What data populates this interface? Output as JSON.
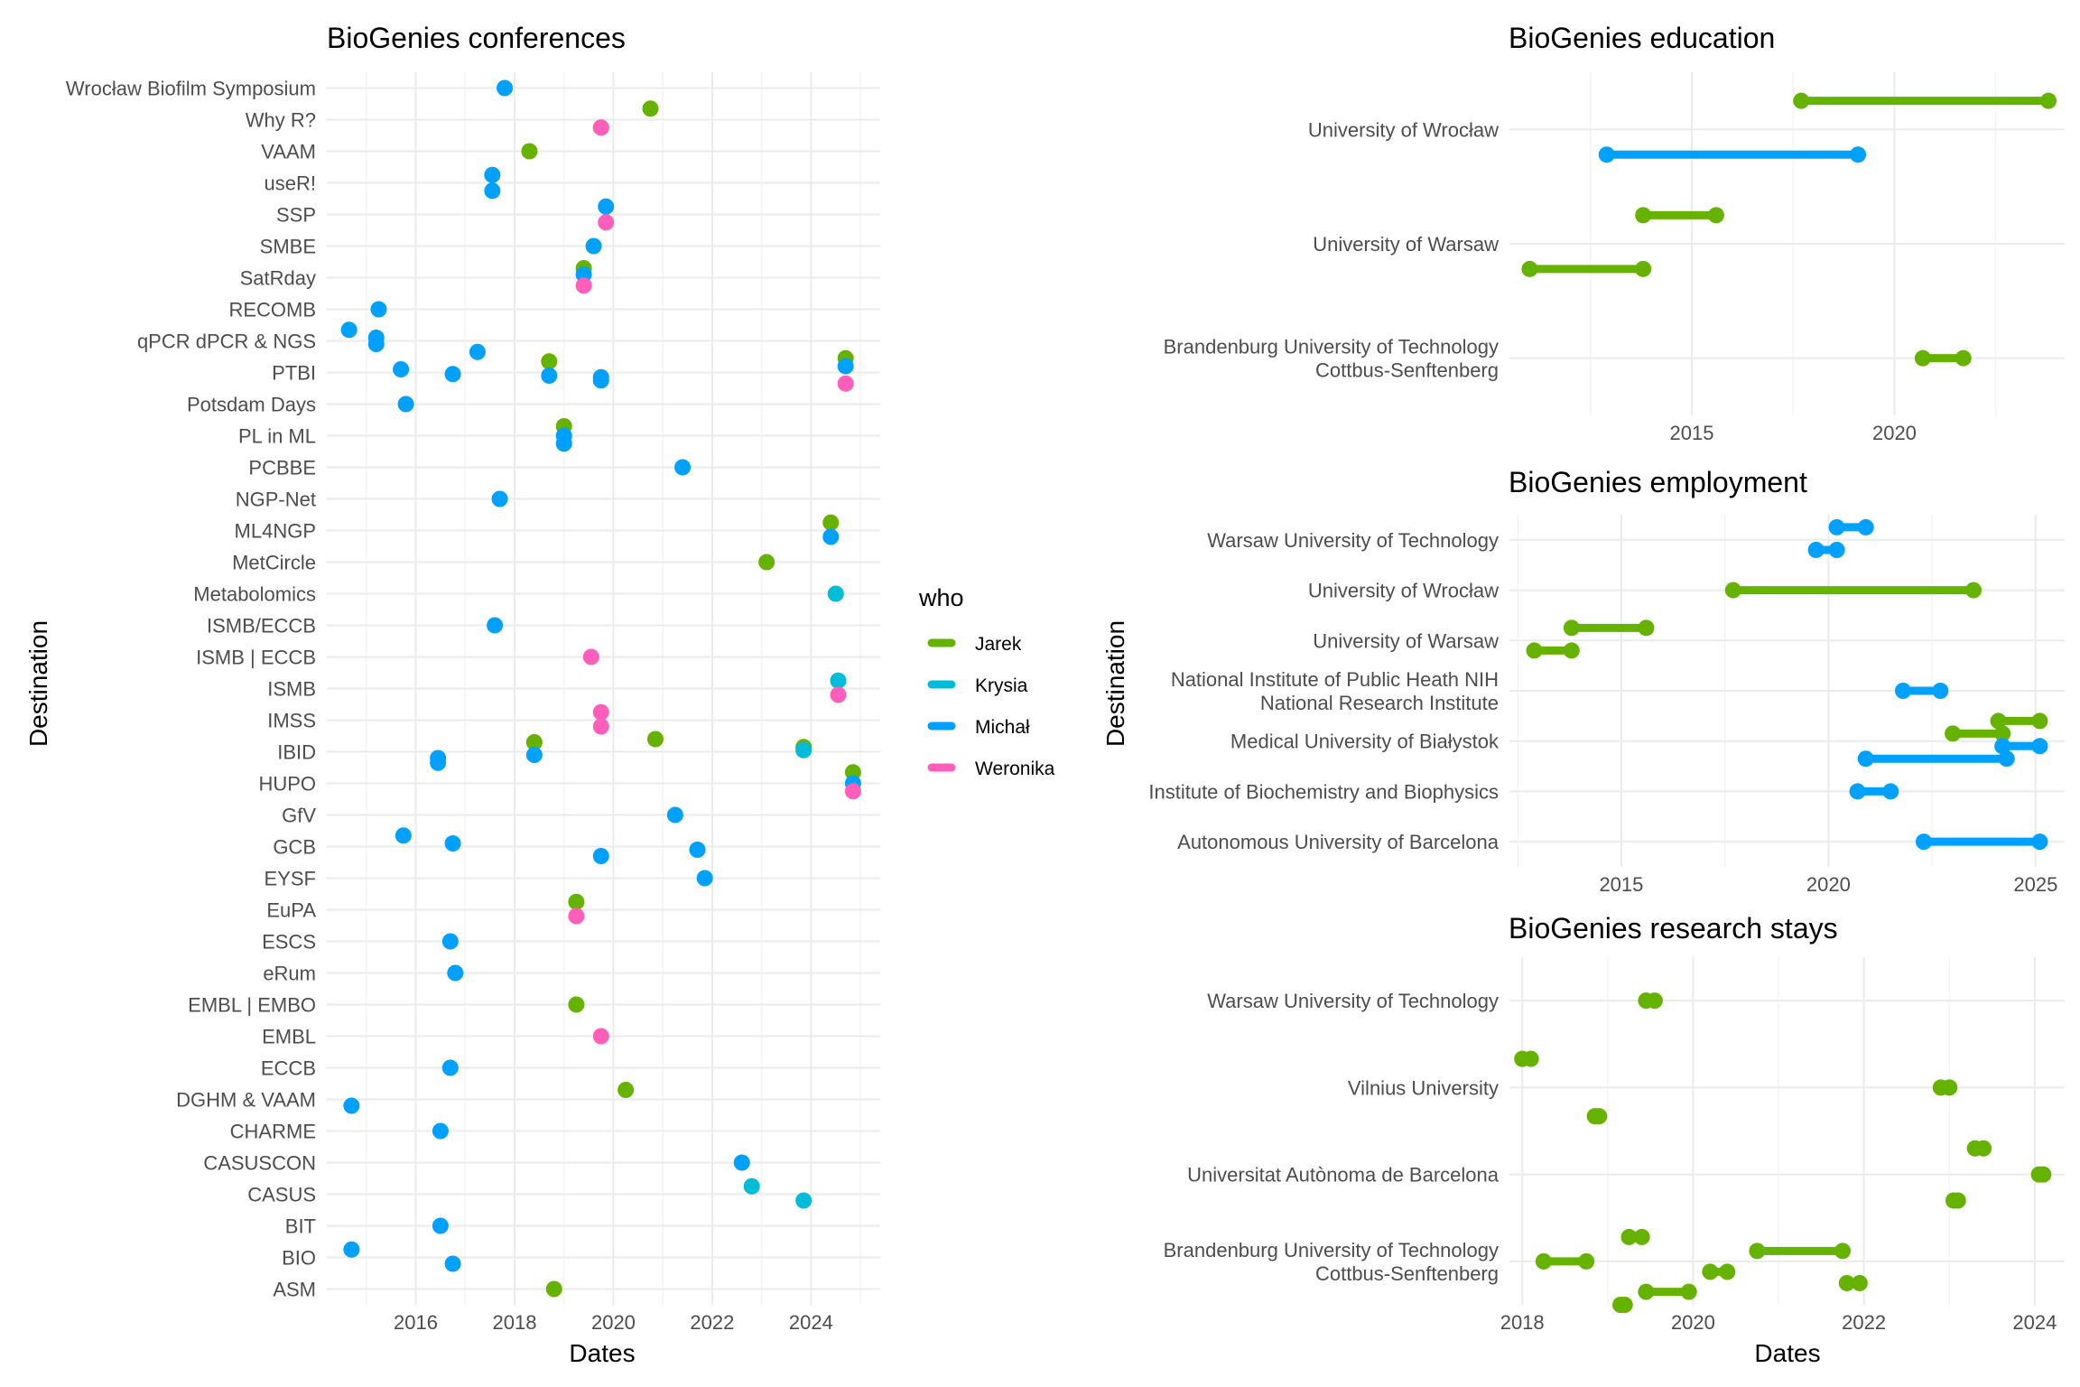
{
  "colors": {
    "Jarek": "#66b200",
    "Krysia": "#00bcd8",
    "Michał": "#00a0ff",
    "Weronika": "#ff5fbb"
  },
  "legend": {
    "title": "who",
    "items": [
      "Jarek",
      "Krysia",
      "Michał",
      "Weronika"
    ]
  },
  "chart_data": [
    {
      "type": "scatter",
      "title": "BioGenies conferences",
      "xlabel": "Dates",
      "ylabel": "Destination",
      "xlim": [
        2014.2,
        2025.4
      ],
      "xticks": [
        "2016",
        "2018",
        "2020",
        "2022",
        "2024"
      ],
      "categories": [
        "ASM",
        "BIO",
        "BIT",
        "CASUS",
        "CASUSCON",
        "CHARME",
        "DGHM & VAAM",
        "ECCB",
        "EMBL",
        "EMBL | EMBO",
        "eRum",
        "ESCS",
        "EuPA",
        "EYSF",
        "GCB",
        "GfV",
        "HUPO",
        "IBID",
        "IMSS",
        "ISMB",
        "ISMB | ECCB",
        "ISMB/ECCB",
        "Metabolomics",
        "MetCircle",
        "ML4NGP",
        "NGP-Net",
        "PCBBE",
        "PL in ML",
        "Potsdam Days",
        "PTBI",
        "qPCR dPCR & NGS",
        "RECOMB",
        "SatRday",
        "SMBE",
        "SSP",
        "useR!",
        "VAAM",
        "Why R?",
        "Wrocław Biofilm Symposium"
      ],
      "points": [
        {
          "y": "Wrocław Biofilm Symposium",
          "x": 2017.8,
          "who": "Michał",
          "offset": 0
        },
        {
          "y": "Why R?",
          "x": 2019.75,
          "who": "Jarek",
          "offset": -0.25
        },
        {
          "y": "Why R?",
          "x": 2020.75,
          "who": "Jarek",
          "offset": 0.35
        },
        {
          "y": "Why R?",
          "x": 2019.75,
          "who": "Weronika",
          "offset": -0.25
        },
        {
          "y": "VAAM",
          "x": 2018.3,
          "who": "Jarek",
          "offset": 0
        },
        {
          "y": "useR!",
          "x": 2017.55,
          "who": "Michał",
          "offset": 0.25
        },
        {
          "y": "useR!",
          "x": 2017.55,
          "who": "Michał",
          "offset": -0.25
        },
        {
          "y": "SSP",
          "x": 2019.85,
          "who": "Michał",
          "offset": 0.25
        },
        {
          "y": "SSP",
          "x": 2019.85,
          "who": "Weronika",
          "offset": -0.25
        },
        {
          "y": "SMBE",
          "x": 2019.6,
          "who": "Michał",
          "offset": 0
        },
        {
          "y": "SatRday",
          "x": 2019.4,
          "who": "Jarek",
          "offset": 0.3
        },
        {
          "y": "SatRday",
          "x": 2019.4,
          "who": "Michał",
          "offset": 0.1
        },
        {
          "y": "SatRday",
          "x": 2019.4,
          "who": "Weronika",
          "offset": -0.25
        },
        {
          "y": "RECOMB",
          "x": 2015.25,
          "who": "Michał",
          "offset": 0
        },
        {
          "y": "qPCR dPCR & NGS",
          "x": 2014.65,
          "who": "Michał",
          "offset": 0.35
        },
        {
          "y": "qPCR dPCR & NGS",
          "x": 2015.2,
          "who": "Michał",
          "offset": 0.1
        },
        {
          "y": "qPCR dPCR & NGS",
          "x": 2015.2,
          "who": "Michał",
          "offset": -0.1
        },
        {
          "y": "qPCR dPCR & NGS",
          "x": 2017.25,
          "who": "Michał",
          "offset": -0.35
        },
        {
          "y": "PTBI",
          "x": 2018.7,
          "who": "Jarek",
          "offset": 0.35
        },
        {
          "y": "PTBI",
          "x": 2024.7,
          "who": "Jarek",
          "offset": 0.45
        },
        {
          "y": "PTBI",
          "x": 2015.7,
          "who": "Michał",
          "offset": 0.1
        },
        {
          "y": "PTBI",
          "x": 2016.75,
          "who": "Michał",
          "offset": -0.05
        },
        {
          "y": "PTBI",
          "x": 2018.7,
          "who": "Michał",
          "offset": -0.1
        },
        {
          "y": "PTBI",
          "x": 2019.75,
          "who": "Michał",
          "offset": -0.15
        },
        {
          "y": "PTBI",
          "x": 2019.75,
          "who": "Michał",
          "offset": -0.25
        },
        {
          "y": "PTBI",
          "x": 2024.7,
          "who": "Michał",
          "offset": 0.2
        },
        {
          "y": "PTBI",
          "x": 2024.7,
          "who": "Weronika",
          "offset": -0.35
        },
        {
          "y": "Potsdam Days",
          "x": 2015.8,
          "who": "Michał",
          "offset": 0
        },
        {
          "y": "PL in ML",
          "x": 2019.0,
          "who": "Jarek",
          "offset": 0.3
        },
        {
          "y": "PL in ML",
          "x": 2019.0,
          "who": "Michał",
          "offset": 0
        },
        {
          "y": "PL in ML",
          "x": 2019.0,
          "who": "Michał",
          "offset": -0.25
        },
        {
          "y": "PCBBE",
          "x": 2021.4,
          "who": "Michał",
          "offset": 0
        },
        {
          "y": "NGP-Net",
          "x": 2017.7,
          "who": "Michał",
          "offset": 0
        },
        {
          "y": "ML4NGP",
          "x": 2024.4,
          "who": "Jarek",
          "offset": 0.25
        },
        {
          "y": "ML4NGP",
          "x": 2024.4,
          "who": "Michał",
          "offset": -0.2
        },
        {
          "y": "MetCircle",
          "x": 2023.1,
          "who": "Jarek",
          "offset": 0
        },
        {
          "y": "Metabolomics",
          "x": 2024.5,
          "who": "Krysia",
          "offset": 0
        },
        {
          "y": "ISMB/ECCB",
          "x": 2017.6,
          "who": "Michał",
          "offset": 0
        },
        {
          "y": "ISMB | ECCB",
          "x": 2019.55,
          "who": "Weronika",
          "offset": 0
        },
        {
          "y": "ISMB",
          "x": 2024.55,
          "who": "Krysia",
          "offset": 0.25
        },
        {
          "y": "ISMB",
          "x": 2024.55,
          "who": "Weronika",
          "offset": -0.2
        },
        {
          "y": "IMSS",
          "x": 2019.75,
          "who": "Weronika",
          "offset": 0.25
        },
        {
          "y": "IMSS",
          "x": 2019.75,
          "who": "Weronika",
          "offset": -0.2
        },
        {
          "y": "IBID",
          "x": 2018.4,
          "who": "Jarek",
          "offset": 0.3
        },
        {
          "y": "IBID",
          "x": 2020.85,
          "who": "Jarek",
          "offset": 0.4
        },
        {
          "y": "IBID",
          "x": 2023.85,
          "who": "Jarek",
          "offset": 0.15
        },
        {
          "y": "IBID",
          "x": 2023.85,
          "who": "Krysia",
          "offset": 0.05
        },
        {
          "y": "IBID",
          "x": 2016.45,
          "who": "Michał",
          "offset": -0.2
        },
        {
          "y": "IBID",
          "x": 2016.45,
          "who": "Michał",
          "offset": -0.35
        },
        {
          "y": "IBID",
          "x": 2018.4,
          "who": "Michał",
          "offset": -0.1
        },
        {
          "y": "HUPO",
          "x": 2024.85,
          "who": "Jarek",
          "offset": 0.35
        },
        {
          "y": "HUPO",
          "x": 2024.85,
          "who": "Michał",
          "offset": 0
        },
        {
          "y": "HUPO",
          "x": 2024.85,
          "who": "Weronika",
          "offset": -0.25
        },
        {
          "y": "GfV",
          "x": 2021.25,
          "who": "Michał",
          "offset": 0
        },
        {
          "y": "GCB",
          "x": 2015.75,
          "who": "Michał",
          "offset": 0.35
        },
        {
          "y": "GCB",
          "x": 2016.75,
          "who": "Michał",
          "offset": 0.1
        },
        {
          "y": "GCB",
          "x": 2021.7,
          "who": "Michał",
          "offset": -0.1
        },
        {
          "y": "GCB",
          "x": 2019.75,
          "who": "Michał",
          "offset": -0.3
        },
        {
          "y": "EYSF",
          "x": 2021.85,
          "who": "Michał",
          "offset": 0
        },
        {
          "y": "EuPA",
          "x": 2019.25,
          "who": "Jarek",
          "offset": 0.25
        },
        {
          "y": "EuPA",
          "x": 2019.25,
          "who": "Weronika",
          "offset": -0.2
        },
        {
          "y": "ESCS",
          "x": 2016.7,
          "who": "Michał",
          "offset": 0
        },
        {
          "y": "eRum",
          "x": 2016.8,
          "who": "Michał",
          "offset": 0
        },
        {
          "y": "EMBL | EMBO",
          "x": 2019.25,
          "who": "Jarek",
          "offset": 0
        },
        {
          "y": "EMBL",
          "x": 2019.75,
          "who": "Weronika",
          "offset": 0
        },
        {
          "y": "ECCB",
          "x": 2016.7,
          "who": "Michał",
          "offset": 0
        },
        {
          "y": "DGHM & VAAM",
          "x": 2020.25,
          "who": "Jarek",
          "offset": 0.3
        },
        {
          "y": "DGHM & VAAM",
          "x": 2014.7,
          "who": "Michał",
          "offset": -0.2
        },
        {
          "y": "CHARME",
          "x": 2016.5,
          "who": "Michał",
          "offset": 0
        },
        {
          "y": "CASUSCON",
          "x": 2022.6,
          "who": "Michał",
          "offset": 0
        },
        {
          "y": "CASUS",
          "x": 2022.8,
          "who": "Krysia",
          "offset": 0.25
        },
        {
          "y": "CASUS",
          "x": 2023.85,
          "who": "Krysia",
          "offset": -0.2
        },
        {
          "y": "BIT",
          "x": 2016.5,
          "who": "Michał",
          "offset": 0
        },
        {
          "y": "BIO",
          "x": 2014.7,
          "who": "Michał",
          "offset": 0.25
        },
        {
          "y": "BIO",
          "x": 2016.75,
          "who": "Michał",
          "offset": -0.2
        },
        {
          "y": "ASM",
          "x": 2018.8,
          "who": "Jarek",
          "offset": 0
        }
      ]
    },
    {
      "type": "range",
      "title": "BioGenies education",
      "xlabel": "",
      "ylabel": "",
      "xlim": [
        2010.5,
        2024.2
      ],
      "xticks": [
        "2015",
        "2020"
      ],
      "categories": [
        [
          "Brandenburg University of Technology",
          "Cottbus-Senftenberg"
        ],
        [
          "University of Warsaw"
        ],
        [
          "University of Wrocław"
        ]
      ],
      "segments": [
        {
          "cat": 2,
          "offset": 0.25,
          "start": 2017.7,
          "end": 2023.8,
          "who": "Jarek"
        },
        {
          "cat": 2,
          "offset": -0.22,
          "start": 2012.9,
          "end": 2019.1,
          "who": "Michał"
        },
        {
          "cat": 1,
          "offset": 0.25,
          "start": 2013.8,
          "end": 2015.6,
          "who": "Jarek"
        },
        {
          "cat": 1,
          "offset": -0.22,
          "start": 2011.0,
          "end": 2013.8,
          "who": "Jarek"
        },
        {
          "cat": 0,
          "offset": 0,
          "start": 2020.7,
          "end": 2021.7,
          "who": "Jarek"
        }
      ]
    },
    {
      "type": "range",
      "title": "BioGenies employment",
      "xlabel": "",
      "ylabel": "Destination",
      "xlim": [
        2012.3,
        2025.7
      ],
      "xticks": [
        "2015",
        "2020",
        "2025"
      ],
      "categories": [
        [
          "Autonomous University of Barcelona"
        ],
        [
          "Institute of Biochemistry and Biophysics"
        ],
        [
          "Medical University of Białystok"
        ],
        [
          "National Institute of Public Heath NIH",
          "National Research Institute"
        ],
        [
          "University of Warsaw"
        ],
        [
          "University of Wrocław"
        ],
        [
          "Warsaw University of Technology"
        ]
      ],
      "segments": [
        {
          "cat": 6,
          "offset": 0.25,
          "start": 2020.2,
          "end": 2020.9,
          "who": "Michał"
        },
        {
          "cat": 6,
          "offset": -0.2,
          "start": 2019.7,
          "end": 2020.2,
          "who": "Michał"
        },
        {
          "cat": 5,
          "offset": 0,
          "start": 2017.7,
          "end": 2023.5,
          "who": "Jarek"
        },
        {
          "cat": 4,
          "offset": 0.25,
          "start": 2013.8,
          "end": 2015.6,
          "who": "Jarek"
        },
        {
          "cat": 4,
          "offset": -0.2,
          "start": 2012.9,
          "end": 2013.8,
          "who": "Jarek"
        },
        {
          "cat": 3,
          "offset": 0,
          "start": 2021.8,
          "end": 2022.7,
          "who": "Michał"
        },
        {
          "cat": 2,
          "offset": 0.4,
          "start": 2024.1,
          "end": 2025.1,
          "who": "Jarek"
        },
        {
          "cat": 2,
          "offset": 0.15,
          "start": 2023.0,
          "end": 2024.2,
          "who": "Jarek"
        },
        {
          "cat": 2,
          "offset": -0.1,
          "start": 2024.2,
          "end": 2025.1,
          "who": "Michał"
        },
        {
          "cat": 2,
          "offset": -0.35,
          "start": 2020.9,
          "end": 2024.3,
          "who": "Michał"
        },
        {
          "cat": 1,
          "offset": 0,
          "start": 2020.7,
          "end": 2021.5,
          "who": "Michał"
        },
        {
          "cat": 0,
          "offset": 0,
          "start": 2022.3,
          "end": 2025.1,
          "who": "Michał"
        }
      ]
    },
    {
      "type": "range",
      "title": "BioGenies research stays",
      "xlabel": "Dates",
      "ylabel": "",
      "xlim": [
        2017.85,
        2024.35
      ],
      "xticks": [
        "2018",
        "2020",
        "2022",
        "2024"
      ],
      "categories": [
        [
          "Brandenburg University of Technology",
          "Cottbus-Senftenberg"
        ],
        [
          "Universitat Autònoma de Barcelona"
        ],
        [
          "Vilnius University"
        ],
        [
          "Warsaw University of Technology"
        ]
      ],
      "segments": [
        {
          "cat": 3,
          "offset": 0,
          "start": 2019.45,
          "end": 2019.55,
          "who": "Jarek"
        },
        {
          "cat": 2,
          "offset": 0.33,
          "start": 2018.0,
          "end": 2018.1,
          "who": "Jarek"
        },
        {
          "cat": 2,
          "offset": 0,
          "start": 2022.9,
          "end": 2023.0,
          "who": "Jarek"
        },
        {
          "cat": 2,
          "offset": -0.33,
          "start": 2018.85,
          "end": 2018.9,
          "who": "Jarek"
        },
        {
          "cat": 1,
          "offset": 0.3,
          "start": 2023.3,
          "end": 2023.4,
          "who": "Jarek"
        },
        {
          "cat": 1,
          "offset": 0,
          "start": 2024.05,
          "end": 2024.1,
          "who": "Jarek"
        },
        {
          "cat": 1,
          "offset": -0.3,
          "start": 2023.05,
          "end": 2023.1,
          "who": "Jarek"
        },
        {
          "cat": 0,
          "offset": 0.28,
          "start": 2019.25,
          "end": 2019.4,
          "who": "Jarek"
        },
        {
          "cat": 0,
          "offset": 0.12,
          "start": 2020.75,
          "end": 2021.75,
          "who": "Jarek"
        },
        {
          "cat": 0,
          "offset": 0,
          "start": 2018.25,
          "end": 2018.75,
          "who": "Jarek"
        },
        {
          "cat": 0,
          "offset": -0.12,
          "start": 2020.2,
          "end": 2020.4,
          "who": "Jarek"
        },
        {
          "cat": 0,
          "offset": -0.25,
          "start": 2021.8,
          "end": 2021.95,
          "who": "Jarek"
        },
        {
          "cat": 0,
          "offset": -0.35,
          "start": 2019.45,
          "end": 2019.95,
          "who": "Jarek"
        },
        {
          "cat": 0,
          "offset": -0.5,
          "start": 2019.15,
          "end": 2019.2,
          "who": "Jarek"
        }
      ]
    }
  ]
}
